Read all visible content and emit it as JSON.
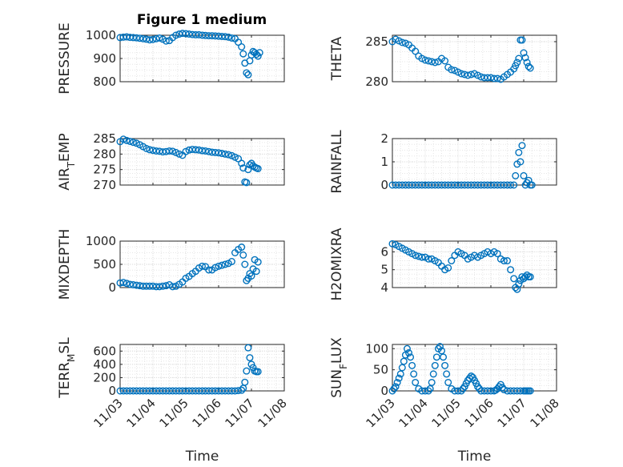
{
  "figure": {
    "title": "Figure 1 medium",
    "marker_color": "#0072bd"
  },
  "chart_data": [
    {
      "type": "scatter",
      "ylabel": "PRESSURE",
      "xlim": [
        "11/03",
        "11/08"
      ],
      "ylim": [
        800,
        1000
      ],
      "yticks": [
        800,
        900,
        1000
      ],
      "grid": true,
      "x": [
        3.0,
        3.1,
        3.2,
        3.3,
        3.4,
        3.5,
        3.6,
        3.7,
        3.8,
        3.9,
        4.0,
        4.1,
        4.2,
        4.3,
        4.4,
        4.5,
        4.6,
        4.7,
        4.8,
        4.9,
        5.0,
        5.1,
        5.2,
        5.3,
        5.4,
        5.5,
        5.6,
        5.7,
        5.8,
        5.9,
        6.0,
        6.1,
        6.2,
        6.3,
        6.4,
        6.5,
        6.6,
        6.7,
        6.75,
        6.8,
        6.85,
        6.9,
        6.95,
        7.0,
        7.05,
        7.1,
        7.15,
        7.2,
        7.25
      ],
      "y": [
        990,
        992,
        993,
        991,
        990,
        989,
        987,
        985,
        983,
        980,
        982,
        985,
        988,
        983,
        975,
        977,
        990,
        1000,
        1005,
        1008,
        1007,
        1005,
        1003,
        1002,
        1002,
        1000,
        999,
        998,
        998,
        997,
        996,
        995,
        994,
        992,
        988,
        985,
        970,
        950,
        920,
        880,
        838,
        830,
        890,
        915,
        930,
        925,
        918,
        910,
        925
      ]
    },
    {
      "type": "scatter",
      "ylabel": "THETA",
      "xlim": [
        "11/03",
        "11/08"
      ],
      "ylim": [
        280,
        285.8
      ],
      "yticks": [
        280,
        285
      ],
      "grid": true,
      "x": [
        3.0,
        3.1,
        3.2,
        3.3,
        3.4,
        3.5,
        3.6,
        3.7,
        3.8,
        3.9,
        4.0,
        4.1,
        4.2,
        4.3,
        4.4,
        4.5,
        4.6,
        4.7,
        4.8,
        4.9,
        5.0,
        5.1,
        5.2,
        5.3,
        5.4,
        5.5,
        5.6,
        5.7,
        5.8,
        5.9,
        6.0,
        6.1,
        6.2,
        6.3,
        6.4,
        6.5,
        6.6,
        6.7,
        6.75,
        6.8,
        6.85,
        6.9,
        6.95,
        7.0,
        7.05,
        7.1,
        7.15,
        7.2
      ],
      "y": [
        285.0,
        285.3,
        285.1,
        284.9,
        284.8,
        284.6,
        284.2,
        283.8,
        283.2,
        282.9,
        282.7,
        282.6,
        282.5,
        282.4,
        282.5,
        282.9,
        282.6,
        281.8,
        281.5,
        281.4,
        281.2,
        281.0,
        280.9,
        280.8,
        280.9,
        281.0,
        280.8,
        280.6,
        280.5,
        280.5,
        280.5,
        280.4,
        280.4,
        280.3,
        280.6,
        280.9,
        281.2,
        281.6,
        282.0,
        282.4,
        282.9,
        285.2,
        285.2,
        283.6,
        283.0,
        282.4,
        281.9,
        281.7
      ]
    },
    {
      "type": "scatter",
      "ylabel": "AIR_TEMP",
      "xlim": [
        "11/03",
        "11/08"
      ],
      "ylim": [
        270,
        285
      ],
      "yticks": [
        270,
        275,
        280,
        285
      ],
      "grid": true,
      "x": [
        3.0,
        3.1,
        3.2,
        3.3,
        3.4,
        3.5,
        3.6,
        3.7,
        3.8,
        3.9,
        4.0,
        4.1,
        4.2,
        4.3,
        4.4,
        4.5,
        4.6,
        4.7,
        4.8,
        4.9,
        5.0,
        5.1,
        5.2,
        5.3,
        5.4,
        5.5,
        5.6,
        5.7,
        5.8,
        5.9,
        6.0,
        6.1,
        6.2,
        6.3,
        6.4,
        6.5,
        6.6,
        6.7,
        6.75,
        6.8,
        6.85,
        6.9,
        6.95,
        7.0,
        7.05,
        7.1,
        7.15,
        7.2
      ],
      "y": [
        284.0,
        284.8,
        284.4,
        284.1,
        283.8,
        283.5,
        283.0,
        282.4,
        281.8,
        281.4,
        281.2,
        281.0,
        280.9,
        280.7,
        280.8,
        281.0,
        280.9,
        280.5,
        280.0,
        279.6,
        280.8,
        281.3,
        281.5,
        281.4,
        281.3,
        281.1,
        281.0,
        280.8,
        280.6,
        280.5,
        280.4,
        280.2,
        280.0,
        279.8,
        279.5,
        279.0,
        278.5,
        277.0,
        275.5,
        271.0,
        270.8,
        275.0,
        276.5,
        277.0,
        276.2,
        275.8,
        275.5,
        275.3
      ]
    },
    {
      "type": "scatter",
      "ylabel": "RAINFALL",
      "xlim": [
        "11/03",
        "11/08"
      ],
      "ylim": [
        0,
        2
      ],
      "yticks": [
        0,
        1,
        2
      ],
      "grid": true,
      "x": [
        3.0,
        3.1,
        3.2,
        3.3,
        3.4,
        3.5,
        3.6,
        3.7,
        3.8,
        3.9,
        4.0,
        4.1,
        4.2,
        4.3,
        4.4,
        4.5,
        4.6,
        4.7,
        4.8,
        4.9,
        5.0,
        5.1,
        5.2,
        5.3,
        5.4,
        5.5,
        5.6,
        5.7,
        5.8,
        5.9,
        6.0,
        6.1,
        6.2,
        6.3,
        6.4,
        6.5,
        6.6,
        6.7,
        6.75,
        6.8,
        6.85,
        6.9,
        6.95,
        7.0,
        7.05,
        7.1,
        7.15,
        7.2,
        7.25
      ],
      "y": [
        0,
        0,
        0,
        0,
        0,
        0,
        0,
        0,
        0,
        0,
        0,
        0,
        0,
        0,
        0,
        0,
        0,
        0,
        0,
        0,
        0,
        0,
        0,
        0,
        0,
        0,
        0,
        0,
        0,
        0,
        0,
        0,
        0,
        0,
        0,
        0,
        0,
        0,
        0.4,
        0.9,
        1.4,
        1.0,
        1.7,
        0.4,
        0,
        0.1,
        0.2,
        0,
        0
      ]
    },
    {
      "type": "scatter",
      "ylabel": "MIXDEPTH",
      "xlim": [
        "11/03",
        "11/08"
      ],
      "ylim": [
        0,
        1000
      ],
      "yticks": [
        0,
        500,
        1000
      ],
      "grid": true,
      "x": [
        3.0,
        3.1,
        3.2,
        3.3,
        3.4,
        3.5,
        3.6,
        3.7,
        3.8,
        3.9,
        4.0,
        4.1,
        4.2,
        4.3,
        4.4,
        4.5,
        4.6,
        4.7,
        4.8,
        4.9,
        5.0,
        5.1,
        5.2,
        5.3,
        5.4,
        5.5,
        5.6,
        5.7,
        5.8,
        5.9,
        6.0,
        6.1,
        6.2,
        6.3,
        6.4,
        6.5,
        6.6,
        6.7,
        6.75,
        6.8,
        6.85,
        6.9,
        6.95,
        7.0,
        7.05,
        7.1,
        7.15,
        7.2
      ],
      "y": [
        100,
        110,
        90,
        70,
        60,
        50,
        40,
        30,
        30,
        30,
        30,
        20,
        20,
        30,
        40,
        60,
        20,
        30,
        70,
        120,
        200,
        240,
        300,
        350,
        420,
        460,
        450,
        380,
        380,
        430,
        460,
        480,
        500,
        520,
        560,
        750,
        820,
        870,
        700,
        500,
        150,
        200,
        300,
        250,
        400,
        600,
        350,
        550
      ]
    },
    {
      "type": "scatter",
      "ylabel": "H2OMIXRA",
      "xlim": [
        "11/03",
        "11/08"
      ],
      "ylim": [
        4,
        6.6
      ],
      "yticks": [
        4,
        5,
        6
      ],
      "grid": true,
      "x": [
        3.0,
        3.1,
        3.2,
        3.3,
        3.4,
        3.5,
        3.6,
        3.7,
        3.8,
        3.9,
        4.0,
        4.1,
        4.2,
        4.3,
        4.4,
        4.5,
        4.6,
        4.7,
        4.8,
        4.9,
        5.0,
        5.1,
        5.2,
        5.3,
        5.4,
        5.5,
        5.6,
        5.7,
        5.8,
        5.9,
        6.0,
        6.1,
        6.2,
        6.3,
        6.4,
        6.5,
        6.6,
        6.7,
        6.75,
        6.8,
        6.85,
        6.9,
        6.95,
        7.0,
        7.05,
        7.1,
        7.15,
        7.2
      ],
      "y": [
        6.45,
        6.4,
        6.3,
        6.2,
        6.1,
        6.0,
        5.9,
        5.8,
        5.75,
        5.7,
        5.7,
        5.6,
        5.6,
        5.5,
        5.4,
        5.2,
        5.0,
        5.1,
        5.5,
        5.8,
        6.0,
        5.9,
        5.8,
        5.6,
        5.7,
        5.8,
        5.7,
        5.8,
        5.9,
        6.0,
        5.9,
        6.0,
        5.9,
        5.6,
        5.5,
        5.5,
        5.0,
        4.5,
        4.0,
        3.9,
        4.2,
        4.4,
        4.6,
        4.5,
        4.6,
        4.7,
        4.6,
        4.6
      ]
    },
    {
      "type": "scatter",
      "ylabel": "TERR_MSL",
      "xlim": [
        "11/03",
        "11/08"
      ],
      "ylim": [
        0,
        700
      ],
      "yticks": [
        0,
        200,
        400,
        600
      ],
      "grid": true,
      "xticks": [
        "11/03",
        "11/04",
        "11/05",
        "11/06",
        "11/07",
        "11/08"
      ],
      "xlabel": "Time",
      "x": [
        3.0,
        3.1,
        3.2,
        3.3,
        3.4,
        3.5,
        3.6,
        3.7,
        3.8,
        3.9,
        4.0,
        4.1,
        4.2,
        4.3,
        4.4,
        4.5,
        4.6,
        4.7,
        4.8,
        4.9,
        5.0,
        5.1,
        5.2,
        5.3,
        5.4,
        5.5,
        5.6,
        5.7,
        5.8,
        5.9,
        6.0,
        6.1,
        6.2,
        6.3,
        6.4,
        6.5,
        6.6,
        6.7,
        6.75,
        6.8,
        6.85,
        6.9,
        6.95,
        7.0,
        7.05,
        7.1,
        7.15,
        7.2
      ],
      "y": [
        0,
        0,
        0,
        0,
        0,
        0,
        0,
        0,
        0,
        0,
        0,
        0,
        0,
        0,
        0,
        0,
        0,
        0,
        0,
        0,
        0,
        0,
        0,
        0,
        0,
        0,
        0,
        0,
        0,
        0,
        0,
        0,
        0,
        0,
        0,
        0,
        5,
        10,
        40,
        130,
        300,
        650,
        500,
        400,
        350,
        300,
        290,
        290
      ]
    },
    {
      "type": "scatter",
      "ylabel": "SUN_FLUX",
      "xlim": [
        "11/03",
        "11/08"
      ],
      "ylim": [
        0,
        110
      ],
      "yticks": [
        0,
        50,
        100
      ],
      "grid": true,
      "xticks": [
        "11/03",
        "11/04",
        "11/05",
        "11/06",
        "11/07",
        "11/08"
      ],
      "xlabel": "Time",
      "x": [
        3.0,
        3.05,
        3.1,
        3.15,
        3.2,
        3.25,
        3.3,
        3.35,
        3.4,
        3.45,
        3.5,
        3.55,
        3.6,
        3.65,
        3.7,
        3.8,
        3.9,
        4.0,
        4.1,
        4.15,
        4.2,
        4.25,
        4.3,
        4.35,
        4.4,
        4.45,
        4.5,
        4.55,
        4.6,
        4.65,
        4.7,
        4.8,
        4.9,
        5.0,
        5.1,
        5.15,
        5.2,
        5.25,
        5.3,
        5.35,
        5.4,
        5.45,
        5.5,
        5.55,
        5.6,
        5.65,
        5.7,
        5.8,
        5.9,
        6.0,
        6.1,
        6.15,
        6.2,
        6.25,
        6.3,
        6.35,
        6.4,
        6.5,
        6.6,
        6.7,
        6.8,
        6.9,
        7.0,
        7.05,
        7.1,
        7.15,
        7.2
      ],
      "y": [
        0,
        5,
        10,
        20,
        30,
        40,
        55,
        70,
        85,
        100,
        90,
        80,
        60,
        40,
        20,
        5,
        0,
        0,
        0,
        5,
        20,
        40,
        60,
        80,
        100,
        105,
        95,
        80,
        60,
        40,
        20,
        5,
        0,
        0,
        0,
        5,
        10,
        18,
        25,
        30,
        35,
        32,
        25,
        18,
        10,
        5,
        0,
        0,
        0,
        0,
        0,
        2,
        5,
        10,
        15,
        8,
        3,
        0,
        0,
        0,
        0,
        0,
        0,
        0,
        0,
        0,
        0
      ]
    }
  ]
}
